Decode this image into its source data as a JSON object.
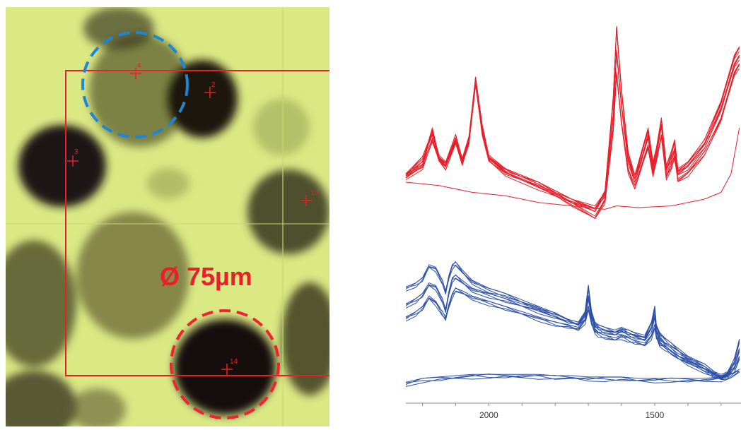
{
  "micrograph": {
    "scale_label": "Ø 75µm",
    "markers": [
      {
        "id": "2",
        "label": "2"
      },
      {
        "id": "3",
        "label": "3"
      },
      {
        "id": "4",
        "label": "4"
      },
      {
        "id": "14",
        "label": "14"
      },
      {
        "id": "15",
        "label": "15"
      }
    ],
    "colors": {
      "marker": "#e8202a",
      "blue_circle": "#1e86d6",
      "red_circle": "#ee2530",
      "background": "#d9e87a"
    }
  },
  "chart_data": {
    "type": "line",
    "title": "",
    "xlabel": "",
    "ylabel": "",
    "x_reversed": true,
    "xlim": [
      2250,
      1240
    ],
    "x_ticks": [
      2000,
      1500
    ],
    "grid": false,
    "series": [
      {
        "group": "top",
        "color": "#e8202a",
        "x": [
          2250,
          2200,
          2170,
          2150,
          2130,
          2100,
          2080,
          2060,
          2040,
          2020,
          2000,
          1950,
          1850,
          1750,
          1680,
          1650,
          1625,
          1615,
          1600,
          1580,
          1560,
          1540,
          1520,
          1505,
          1495,
          1480,
          1465,
          1450,
          1440,
          1430,
          1400,
          1350,
          1300,
          1260,
          1245
        ],
        "y": [
          0.35,
          0.42,
          0.62,
          0.45,
          0.4,
          0.56,
          0.42,
          0.55,
          0.92,
          0.62,
          0.45,
          0.38,
          0.3,
          0.2,
          0.14,
          0.25,
          0.8,
          1.22,
          0.85,
          0.48,
          0.34,
          0.48,
          0.62,
          0.42,
          0.5,
          0.68,
          0.4,
          0.48,
          0.55,
          0.38,
          0.42,
          0.55,
          0.78,
          1.05,
          1.1
        ]
      },
      {
        "group": "top",
        "color": "#e8202a",
        "x": [
          2250,
          2200,
          2170,
          2150,
          2130,
          2100,
          2080,
          2060,
          2040,
          2020,
          2000,
          1950,
          1850,
          1750,
          1680,
          1650,
          1625,
          1615,
          1600,
          1580,
          1560,
          1540,
          1520,
          1505,
          1495,
          1480,
          1465,
          1450,
          1440,
          1430,
          1400,
          1350,
          1300,
          1260,
          1245
        ],
        "y": [
          0.35,
          0.45,
          0.6,
          0.46,
          0.42,
          0.58,
          0.44,
          0.57,
          0.92,
          0.64,
          0.46,
          0.38,
          0.3,
          0.18,
          0.1,
          0.2,
          0.62,
          0.95,
          0.66,
          0.38,
          0.28,
          0.4,
          0.52,
          0.36,
          0.44,
          0.58,
          0.34,
          0.4,
          0.46,
          0.32,
          0.36,
          0.48,
          0.68,
          0.95,
          1.0
        ]
      },
      {
        "group": "top",
        "color": "#e8202a",
        "x": [
          2250,
          2200,
          2170,
          2150,
          2130,
          2100,
          2080,
          2060,
          2040,
          2020,
          2000,
          1950,
          1850,
          1750,
          1680,
          1650,
          1625,
          1615,
          1600,
          1580,
          1560,
          1540,
          1520,
          1505,
          1495,
          1480,
          1465,
          1450,
          1440,
          1430,
          1400,
          1350,
          1300,
          1260,
          1245
        ],
        "y": [
          0.34,
          0.4,
          0.56,
          0.44,
          0.4,
          0.55,
          0.42,
          0.54,
          0.9,
          0.6,
          0.44,
          0.36,
          0.28,
          0.2,
          0.16,
          0.24,
          0.7,
          1.08,
          0.76,
          0.44,
          0.32,
          0.44,
          0.58,
          0.4,
          0.48,
          0.64,
          0.38,
          0.44,
          0.5,
          0.36,
          0.4,
          0.52,
          0.74,
          1.0,
          1.05
        ]
      },
      {
        "group": "top",
        "color": "#e8202a",
        "x": [
          2250,
          2150,
          2050,
          1950,
          1850,
          1750,
          1650,
          1615,
          1550,
          1450,
          1350,
          1300,
          1270,
          1245
        ],
        "y": [
          0.3,
          0.28,
          0.24,
          0.22,
          0.18,
          0.16,
          0.14,
          0.16,
          0.15,
          0.16,
          0.2,
          0.24,
          0.35,
          0.62
        ]
      },
      {
        "group": "bottom",
        "color": "#2c4fa8",
        "x": [
          2250,
          2220,
          2200,
          2180,
          2160,
          2140,
          2130,
          2120,
          2110,
          2100,
          2080,
          2050,
          2000,
          1950,
          1900,
          1850,
          1800,
          1760,
          1730,
          1710,
          1700,
          1690,
          1680,
          1670,
          1650,
          1620,
          1600,
          1580,
          1560,
          1530,
          1510,
          1500,
          1495,
          1485,
          1470,
          1450,
          1430,
          1400,
          1350,
          1320,
          1300,
          1280,
          1260,
          1245
        ],
        "y": [
          0.75,
          0.78,
          0.82,
          0.92,
          0.9,
          0.8,
          0.72,
          0.84,
          0.92,
          0.94,
          0.88,
          0.8,
          0.74,
          0.7,
          0.65,
          0.6,
          0.55,
          0.5,
          0.48,
          0.56,
          0.76,
          0.56,
          0.48,
          0.46,
          0.44,
          0.42,
          0.44,
          0.42,
          0.4,
          0.38,
          0.48,
          0.6,
          0.46,
          0.4,
          0.36,
          0.32,
          0.28,
          0.22,
          0.16,
          0.1,
          0.08,
          0.1,
          0.2,
          0.35
        ]
      },
      {
        "group": "bottom",
        "color": "#2c4fa8",
        "x": [
          2250,
          2220,
          2200,
          2180,
          2160,
          2140,
          2130,
          2120,
          2110,
          2100,
          2080,
          2050,
          2000,
          1950,
          1900,
          1850,
          1800,
          1760,
          1730,
          1710,
          1700,
          1690,
          1680,
          1670,
          1650,
          1620,
          1600,
          1580,
          1560,
          1530,
          1510,
          1500,
          1495,
          1485,
          1470,
          1450,
          1430,
          1400,
          1350,
          1320,
          1300,
          1280,
          1260,
          1245
        ],
        "y": [
          0.62,
          0.66,
          0.7,
          0.78,
          0.76,
          0.66,
          0.58,
          0.72,
          0.82,
          0.84,
          0.8,
          0.74,
          0.7,
          0.66,
          0.62,
          0.58,
          0.54,
          0.5,
          0.48,
          0.54,
          0.68,
          0.52,
          0.46,
          0.44,
          0.42,
          0.4,
          0.42,
          0.4,
          0.38,
          0.36,
          0.44,
          0.54,
          0.42,
          0.36,
          0.32,
          0.28,
          0.24,
          0.2,
          0.14,
          0.09,
          0.07,
          0.09,
          0.16,
          0.28
        ]
      },
      {
        "group": "bottom",
        "color": "#2c4fa8",
        "x": [
          2250,
          2220,
          2200,
          2180,
          2160,
          2140,
          2130,
          2120,
          2110,
          2100,
          2080,
          2050,
          2000,
          1950,
          1900,
          1850,
          1800,
          1760,
          1730,
          1710,
          1700,
          1690,
          1680,
          1670,
          1650,
          1620,
          1600,
          1580,
          1560,
          1530,
          1510,
          1500,
          1495,
          1485,
          1470,
          1450,
          1430,
          1400,
          1350,
          1320,
          1300,
          1280,
          1260,
          1245
        ],
        "y": [
          0.52,
          0.56,
          0.6,
          0.68,
          0.64,
          0.56,
          0.52,
          0.62,
          0.7,
          0.74,
          0.72,
          0.68,
          0.64,
          0.6,
          0.56,
          0.52,
          0.48,
          0.46,
          0.44,
          0.5,
          0.6,
          0.48,
          0.42,
          0.4,
          0.38,
          0.36,
          0.38,
          0.36,
          0.34,
          0.32,
          0.38,
          0.46,
          0.38,
          0.32,
          0.3,
          0.26,
          0.22,
          0.18,
          0.12,
          0.08,
          0.06,
          0.08,
          0.12,
          0.22
        ]
      },
      {
        "group": "bottom",
        "color": "#2c4fa8",
        "x": [
          2250,
          2200,
          2150,
          2100,
          2050,
          2000,
          1950,
          1900,
          1850,
          1800,
          1750,
          1700,
          1650,
          1600,
          1550,
          1500,
          1450,
          1400,
          1350,
          1300,
          1270,
          1245
        ],
        "y": [
          0.02,
          0.05,
          0.06,
          0.07,
          0.08,
          0.08,
          0.08,
          0.08,
          0.08,
          0.07,
          0.07,
          0.06,
          0.06,
          0.06,
          0.05,
          0.05,
          0.05,
          0.05,
          0.05,
          0.06,
          0.08,
          0.12
        ]
      }
    ]
  }
}
